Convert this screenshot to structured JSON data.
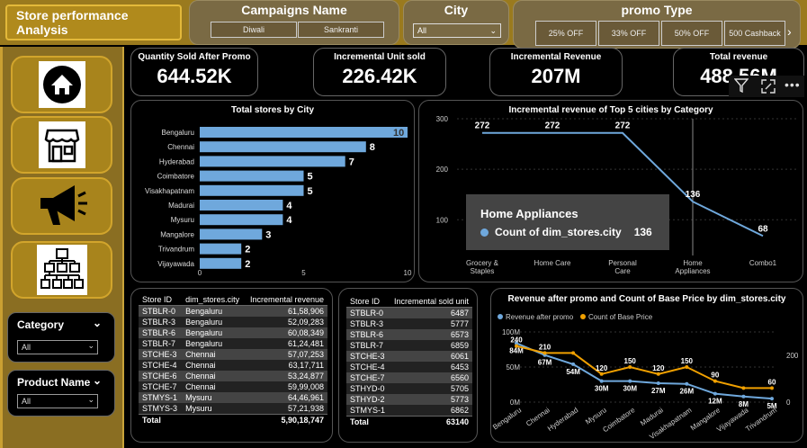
{
  "header": {
    "title": "Store performance Analysis",
    "campaigns": {
      "label": "Campaigns Name",
      "options": [
        "Diwali",
        "Sankranti"
      ]
    },
    "city": {
      "label": "City",
      "selected": "All"
    },
    "promo": {
      "label": "promo Type",
      "options": [
        "25% OFF",
        "33% OFF",
        "50% OFF",
        "500 Cashback"
      ]
    }
  },
  "kpis": [
    {
      "label": "Quantity Sold After Promo",
      "value": "644.52K"
    },
    {
      "label": "Incremental Unit sold",
      "value": "226.42K"
    },
    {
      "label": "Incremental Revenue",
      "value": "207M"
    },
    {
      "label": "Total revenue",
      "value": "488.56M"
    }
  ],
  "filters": {
    "category": {
      "label": "Category",
      "selected": "All"
    },
    "product": {
      "label": "Product Name",
      "selected": "All"
    }
  },
  "stores_by_city": {
    "title": "Total stores by City",
    "chart_data": {
      "type": "bar",
      "categories": [
        "Bengaluru",
        "Chennai",
        "Hyderabad",
        "Coimbatore",
        "Visakhapatnam",
        "Madurai",
        "Mysuru",
        "Mangalore",
        "Trivandrum",
        "Vijayawada"
      ],
      "values": [
        10,
        8,
        7,
        5,
        5,
        4,
        4,
        3,
        2,
        2
      ],
      "xticks": [
        "0",
        "5",
        "10"
      ],
      "xlim": [
        0,
        10
      ],
      "color": "#6fa8dc"
    }
  },
  "incremental_by_category": {
    "title": "Incremental revenue of Top 5 cities by Category",
    "chart_data": {
      "type": "line",
      "categories": [
        "Grocery & Staples",
        "Home Care",
        "Personal Care",
        "Home Appliances",
        "Combo1"
      ],
      "values": [
        272,
        272,
        272,
        136,
        68
      ],
      "yticks": [
        "300",
        "200",
        "100"
      ],
      "ylim": [
        40,
        300
      ],
      "color": "#6fa8dc"
    },
    "tooltip": {
      "title": "Home Appliances",
      "label": "Count of dim_stores.city",
      "value": "136"
    }
  },
  "revenue_table": {
    "headers": [
      "Store ID",
      "dim_stores.city",
      "Incremental revenue"
    ],
    "rows": [
      [
        "STBLR-0",
        "Bengaluru",
        "61,58,906"
      ],
      [
        "STBLR-3",
        "Bengaluru",
        "52,09,283"
      ],
      [
        "STBLR-6",
        "Bengaluru",
        "60,08,349"
      ],
      [
        "STBLR-7",
        "Bengaluru",
        "61,24,481"
      ],
      [
        "STCHE-3",
        "Chennai",
        "57,07,253"
      ],
      [
        "STCHE-4",
        "Chennai",
        "63,17,711"
      ],
      [
        "STCHE-6",
        "Chennai",
        "53,24,877"
      ],
      [
        "STCHE-7",
        "Chennai",
        "59,99,008"
      ],
      [
        "STMYS-1",
        "Mysuru",
        "64,46,961"
      ],
      [
        "STMYS-3",
        "Mysuru",
        "57,21,938"
      ]
    ],
    "total_label": "Total",
    "total_value": "5,90,18,747"
  },
  "units_table": {
    "headers": [
      "Store ID",
      "Incremental sold unit"
    ],
    "rows": [
      [
        "STBLR-0",
        "6487"
      ],
      [
        "STBLR-3",
        "5777"
      ],
      [
        "STBLR-6",
        "6573"
      ],
      [
        "STBLR-7",
        "6859"
      ],
      [
        "STCHE-3",
        "6061"
      ],
      [
        "STCHE-4",
        "6453"
      ],
      [
        "STCHE-7",
        "6560"
      ],
      [
        "STHYD-0",
        "5705"
      ],
      [
        "STHYD-2",
        "5773"
      ],
      [
        "STMYS-1",
        "6862"
      ]
    ],
    "total_label": "Total",
    "total_value": "63140"
  },
  "combo_chart": {
    "title": "Revenue after promo and Count of Base Price by dim_stores.city",
    "chart_data": {
      "type": "line",
      "categories": [
        "Bengaluru",
        "Chennai",
        "Hyderabad",
        "Mysuru",
        "Coimbatore",
        "Madurai",
        "Visakhapatnam",
        "Mangalore",
        "Vijayawada",
        "Trivandrum"
      ],
      "series": [
        {
          "name": "Revenue after promo",
          "values": [
            84,
            67,
            54,
            30,
            30,
            27,
            26,
            12,
            8,
            5
          ],
          "labels": [
            "84M",
            "67M",
            "54M",
            "30M",
            "30M",
            "27M",
            "26M",
            "12M",
            "8M",
            "5M"
          ],
          "color": "#6fa8dc",
          "axis": "left"
        },
        {
          "name": "Count of Base Price",
          "values": [
            240,
            210,
            210,
            120,
            150,
            120,
            150,
            90,
            60,
            60
          ],
          "labels": [
            "240",
            "210",
            "",
            "120",
            "150",
            "120",
            "150",
            "90",
            "",
            "60"
          ],
          "color": "#f0a000",
          "axis": "right"
        }
      ],
      "yticks_left": [
        "100M",
        "50M",
        "0M"
      ],
      "yticks_right": [
        "200",
        "0"
      ],
      "ylim_left": [
        0,
        100
      ],
      "ylim_right": [
        0,
        300
      ]
    }
  }
}
